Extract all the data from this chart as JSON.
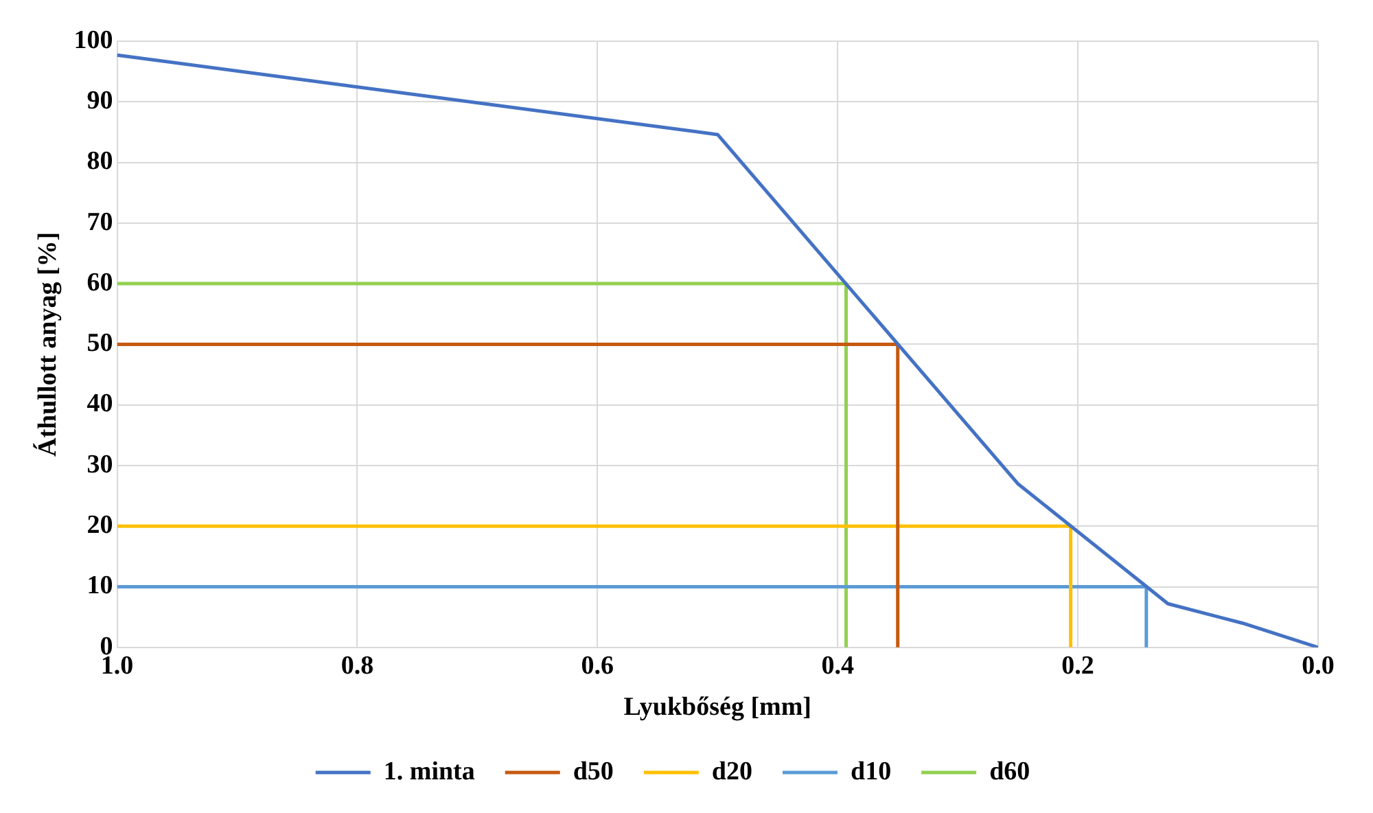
{
  "chart_data": {
    "type": "line",
    "xlabel": "Lyukbőség [mm]",
    "ylabel": "Áthullott anyag [%]",
    "xlim": [
      1.0,
      0.0
    ],
    "xticks": [
      {
        "value": 1,
        "label": "1.0"
      },
      {
        "value": 0.8,
        "label": "0.8"
      },
      {
        "value": 0.6,
        "label": "0.6"
      },
      {
        "value": 0.4,
        "label": "0.4"
      },
      {
        "value": 0.2,
        "label": "0.2"
      },
      {
        "value": 0,
        "label": "0.0"
      }
    ],
    "ylim": [
      0,
      100
    ],
    "yticks": [
      0,
      10,
      20,
      30,
      40,
      50,
      60,
      70,
      80,
      90,
      100
    ],
    "grid": true,
    "legend": "bottom",
    "marker": "none",
    "line_style": "solid",
    "series": [
      {
        "name": "1. minta",
        "color": "#4472c4",
        "x": [
          1.0,
          0.5,
          0.25,
          0.125,
          0.063,
          0
        ],
        "values": [
          97.7,
          84.6,
          27,
          7.2,
          4,
          0
        ]
      },
      {
        "name": "d50",
        "color": "#c55a11",
        "x": [
          1.0,
          0.35,
          0.35
        ],
        "values": [
          50,
          50,
          0
        ]
      },
      {
        "name": "d20",
        "color": "#ffc000",
        "x": [
          1.0,
          0.206,
          0.206
        ],
        "values": [
          20,
          20,
          0
        ]
      },
      {
        "name": "d10",
        "color": "#5b9bd5",
        "x": [
          1.0,
          0.143,
          0.143
        ],
        "values": [
          10,
          10,
          0
        ]
      },
      {
        "name": "d60",
        "color": "#92d050",
        "x": [
          1.0,
          0.393,
          0.393
        ],
        "values": [
          60,
          60,
          0
        ]
      }
    ]
  }
}
